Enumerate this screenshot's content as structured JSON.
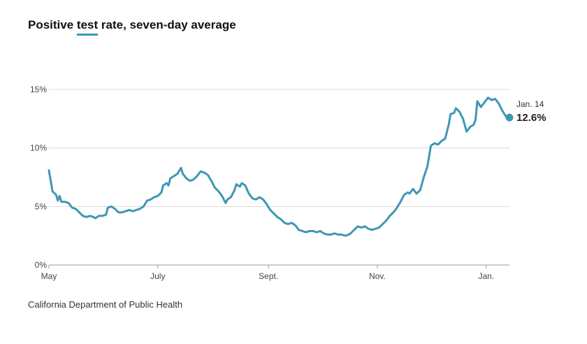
{
  "title": {
    "prefix": "Positive ",
    "key": "test",
    "suffix": " rate, seven-day average"
  },
  "source": "California Department of Public Health",
  "chart_data": {
    "type": "line",
    "title": "Positive test rate, seven-day average",
    "xlabel": "",
    "ylabel": "",
    "x_start": "May 1",
    "x_end": "Jan. 14",
    "xlim": [
      "May 1",
      "Jan. 14"
    ],
    "ylim": [
      0,
      15
    ],
    "y_unit": "%",
    "grid": true,
    "line_color": "#3f97b5",
    "y_ticks": [
      {
        "value": 0,
        "label": "0%"
      },
      {
        "value": 5,
        "label": "5%"
      },
      {
        "value": 10,
        "label": "10%"
      },
      {
        "value": 15,
        "label": "15%"
      }
    ],
    "x_ticks": [
      {
        "date": "May 1",
        "label": "May"
      },
      {
        "date": "July 1",
        "label": "July"
      },
      {
        "date": "Sept. 1",
        "label": "Sept."
      },
      {
        "date": "Nov. 1",
        "label": "Nov."
      },
      {
        "date": "Jan. 1",
        "label": "Jan."
      }
    ],
    "annotation": {
      "date": "Jan. 14",
      "label": "Jan. 14",
      "value": 12.6,
      "value_label": "12.6%"
    },
    "series": [
      {
        "values": [
          [
            "May 1",
            8.1
          ],
          [
            "May 3",
            6.3
          ],
          [
            "May 5",
            6.0
          ],
          [
            "May 6",
            5.5
          ],
          [
            "May 7",
            5.9
          ],
          [
            "May 8",
            5.4
          ],
          [
            "May 10",
            5.4
          ],
          [
            "May 12",
            5.3
          ],
          [
            "May 14",
            4.9
          ],
          [
            "May 16",
            4.8
          ],
          [
            "May 18",
            4.5
          ],
          [
            "May 20",
            4.2
          ],
          [
            "May 22",
            4.1
          ],
          [
            "May 24",
            4.2
          ],
          [
            "May 26",
            4.1
          ],
          [
            "May 27",
            4.0
          ],
          [
            "May 29",
            4.2
          ],
          [
            "May 31",
            4.2
          ],
          [
            "June 2",
            4.3
          ],
          [
            "June 3",
            4.9
          ],
          [
            "June 5",
            5.0
          ],
          [
            "June 7",
            4.8
          ],
          [
            "June 9",
            4.5
          ],
          [
            "June 11",
            4.5
          ],
          [
            "June 13",
            4.6
          ],
          [
            "June 15",
            4.7
          ],
          [
            "June 17",
            4.6
          ],
          [
            "June 19",
            4.7
          ],
          [
            "June 21",
            4.8
          ],
          [
            "June 23",
            5.0
          ],
          [
            "June 25",
            5.5
          ],
          [
            "June 27",
            5.6
          ],
          [
            "June 29",
            5.8
          ],
          [
            "July 1",
            5.9
          ],
          [
            "July 3",
            6.2
          ],
          [
            "July 4",
            6.8
          ],
          [
            "July 6",
            7.0
          ],
          [
            "July 7",
            6.8
          ],
          [
            "July 8",
            7.4
          ],
          [
            "July 10",
            7.6
          ],
          [
            "July 12",
            7.8
          ],
          [
            "July 14",
            8.3
          ],
          [
            "July 15",
            7.8
          ],
          [
            "July 17",
            7.4
          ],
          [
            "July 19",
            7.2
          ],
          [
            "July 21",
            7.3
          ],
          [
            "July 23",
            7.6
          ],
          [
            "July 25",
            8.0
          ],
          [
            "July 27",
            7.9
          ],
          [
            "July 29",
            7.7
          ],
          [
            "July 31",
            7.2
          ],
          [
            "Aug. 2",
            6.6
          ],
          [
            "Aug. 4",
            6.3
          ],
          [
            "Aug. 6",
            5.9
          ],
          [
            "Aug. 8",
            5.3
          ],
          [
            "Aug. 9",
            5.6
          ],
          [
            "Aug. 11",
            5.8
          ],
          [
            "Aug. 13",
            6.4
          ],
          [
            "Aug. 14",
            6.9
          ],
          [
            "Aug. 16",
            6.7
          ],
          [
            "Aug. 17",
            7.0
          ],
          [
            "Aug. 19",
            6.8
          ],
          [
            "Aug. 21",
            6.1
          ],
          [
            "Aug. 23",
            5.7
          ],
          [
            "Aug. 25",
            5.6
          ],
          [
            "Aug. 27",
            5.8
          ],
          [
            "Aug. 29",
            5.6
          ],
          [
            "Aug. 31",
            5.2
          ],
          [
            "Sept. 2",
            4.7
          ],
          [
            "Sept. 4",
            4.4
          ],
          [
            "Sept. 6",
            4.1
          ],
          [
            "Sept. 8",
            3.9
          ],
          [
            "Sept. 10",
            3.6
          ],
          [
            "Sept. 12",
            3.5
          ],
          [
            "Sept. 14",
            3.6
          ],
          [
            "Sept. 16",
            3.4
          ],
          [
            "Sept. 18",
            3.0
          ],
          [
            "Sept. 20",
            2.9
          ],
          [
            "Sept. 22",
            2.8
          ],
          [
            "Sept. 24",
            2.9
          ],
          [
            "Sept. 26",
            2.9
          ],
          [
            "Sept. 28",
            2.8
          ],
          [
            "Sept. 30",
            2.9
          ],
          [
            "Oct. 2",
            2.7
          ],
          [
            "Oct. 4",
            2.6
          ],
          [
            "Oct. 6",
            2.6
          ],
          [
            "Oct. 8",
            2.7
          ],
          [
            "Oct. 10",
            2.6
          ],
          [
            "Oct. 12",
            2.6
          ],
          [
            "Oct. 14",
            2.5
          ],
          [
            "Oct. 16",
            2.6
          ],
          [
            "Oct. 17",
            2.7
          ],
          [
            "Oct. 19",
            3.0
          ],
          [
            "Oct. 21",
            3.3
          ],
          [
            "Oct. 23",
            3.2
          ],
          [
            "Oct. 25",
            3.3
          ],
          [
            "Oct. 27",
            3.1
          ],
          [
            "Oct. 29",
            3.0
          ],
          [
            "Oct. 31",
            3.1
          ],
          [
            "Nov. 2",
            3.2
          ],
          [
            "Nov. 4",
            3.5
          ],
          [
            "Nov. 6",
            3.8
          ],
          [
            "Nov. 8",
            4.2
          ],
          [
            "Nov. 10",
            4.5
          ],
          [
            "Nov. 12",
            4.9
          ],
          [
            "Nov. 14",
            5.4
          ],
          [
            "Nov. 16",
            6.0
          ],
          [
            "Nov. 18",
            6.2
          ],
          [
            "Nov. 19",
            6.1
          ],
          [
            "Nov. 21",
            6.5
          ],
          [
            "Nov. 23",
            6.1
          ],
          [
            "Nov. 25",
            6.4
          ],
          [
            "Nov. 27",
            7.5
          ],
          [
            "Nov. 29",
            8.4
          ],
          [
            "Dec. 1",
            10.2
          ],
          [
            "Dec. 3",
            10.4
          ],
          [
            "Dec. 5",
            10.3
          ],
          [
            "Dec. 7",
            10.6
          ],
          [
            "Dec. 9",
            10.8
          ],
          [
            "Dec. 11",
            12.0
          ],
          [
            "Dec. 12",
            12.9
          ],
          [
            "Dec. 14",
            13.0
          ],
          [
            "Dec. 15",
            13.4
          ],
          [
            "Dec. 17",
            13.1
          ],
          [
            "Dec. 19",
            12.5
          ],
          [
            "Dec. 21",
            11.4
          ],
          [
            "Dec. 23",
            11.8
          ],
          [
            "Dec. 25",
            12.0
          ],
          [
            "Dec. 26",
            12.4
          ],
          [
            "Dec. 27",
            14.0
          ],
          [
            "Dec. 29",
            13.5
          ],
          [
            "Dec. 31",
            13.9
          ],
          [
            "Jan. 2",
            14.3
          ],
          [
            "Jan. 4",
            14.1
          ],
          [
            "Jan. 6",
            14.2
          ],
          [
            "Jan. 8",
            13.8
          ],
          [
            "Jan. 10",
            13.2
          ],
          [
            "Jan. 12",
            12.7
          ],
          [
            "Jan. 14",
            12.6
          ]
        ]
      }
    ]
  }
}
